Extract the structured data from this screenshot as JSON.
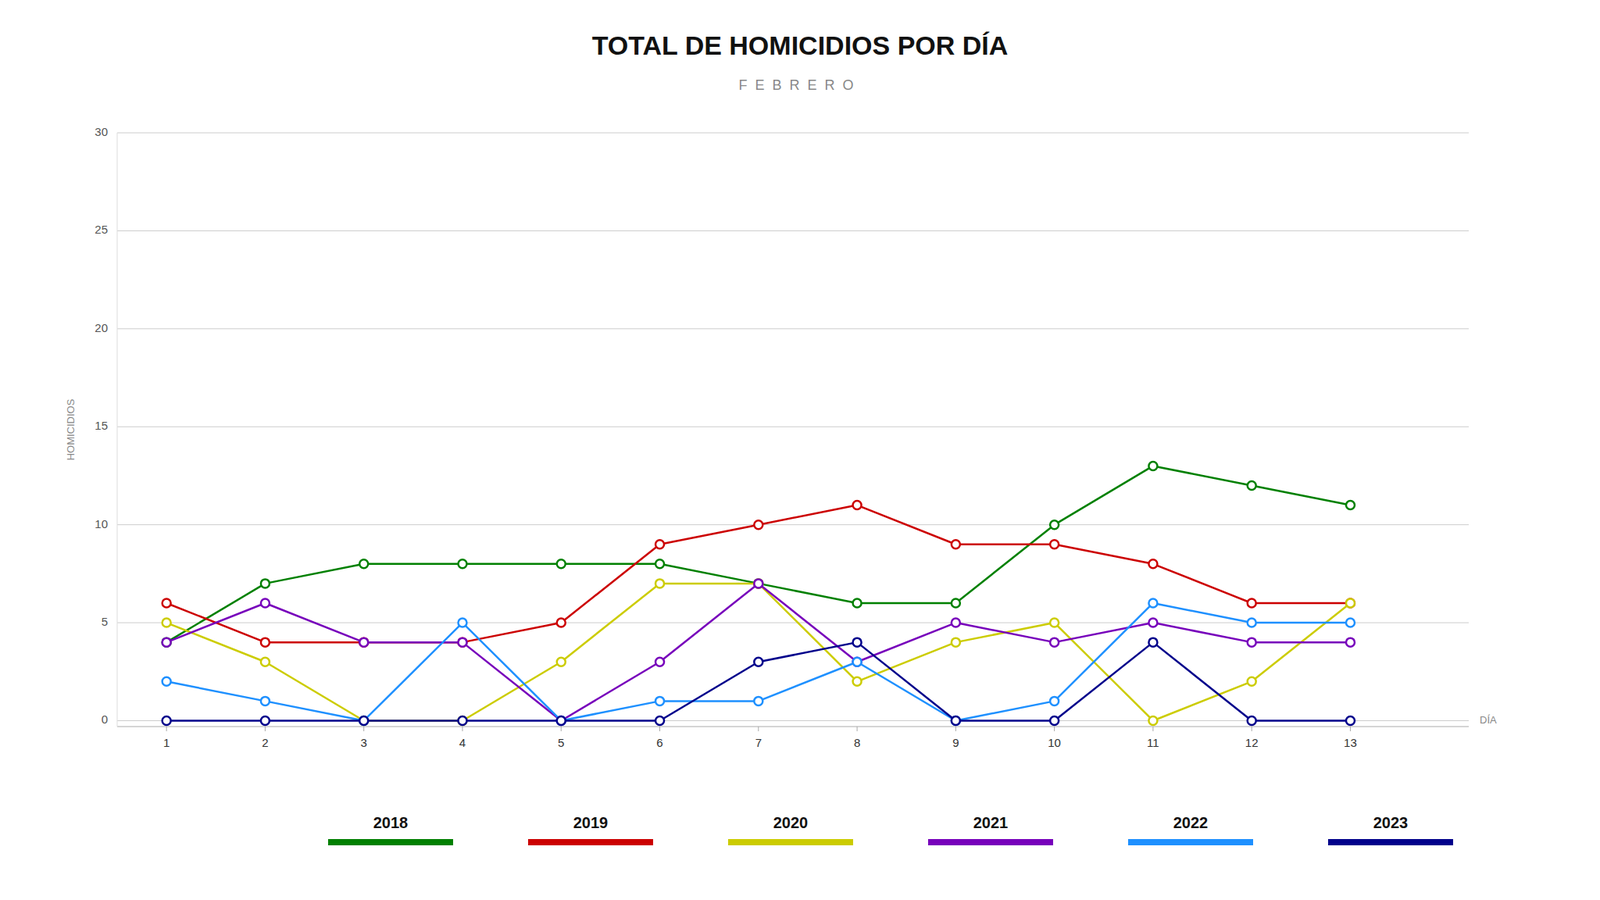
{
  "chart_data": {
    "type": "line",
    "title": "TOTAL DE HOMICIDIOS POR DÍA",
    "subtitle": "FEBRERO",
    "xlabel": "DÍA",
    "ylabel": "HOMICIDIOS",
    "x": [
      1,
      2,
      3,
      4,
      5,
      6,
      7,
      8,
      9,
      10,
      11,
      12,
      13
    ],
    "series": [
      {
        "name": "2018",
        "color": "#008000",
        "values": [
          4,
          7,
          8,
          8,
          8,
          8,
          7,
          6,
          6,
          10,
          13,
          12,
          11
        ]
      },
      {
        "name": "2019",
        "color": "#cc0000",
        "values": [
          6,
          4,
          4,
          4,
          5,
          9,
          10,
          11,
          9,
          9,
          8,
          6,
          6
        ]
      },
      {
        "name": "2020",
        "color": "#cccc00",
        "values": [
          5,
          3,
          0,
          0,
          3,
          7,
          7,
          2,
          4,
          5,
          0,
          2,
          6
        ]
      },
      {
        "name": "2021",
        "color": "#7700bb",
        "values": [
          4,
          6,
          4,
          4,
          0,
          3,
          7,
          3,
          5,
          4,
          5,
          4,
          4
        ]
      },
      {
        "name": "2022",
        "color": "#1e90ff",
        "values": [
          2,
          1,
          0,
          5,
          0,
          1,
          1,
          3,
          0,
          1,
          6,
          5,
          5
        ]
      },
      {
        "name": "2023",
        "color": "#00008b",
        "values": [
          0,
          0,
          0,
          0,
          0,
          0,
          3,
          4,
          0,
          0,
          4,
          0,
          0
        ]
      }
    ],
    "xlim": [
      0.5,
      14.2
    ],
    "xticks": [
      1,
      2,
      3,
      4,
      5,
      6,
      7,
      8,
      9,
      10,
      11,
      12,
      13
    ],
    "ylim": [
      -0.3,
      30
    ],
    "yticks": [
      0,
      5,
      10,
      15,
      20,
      25,
      30
    ],
    "grid": true,
    "legend": "bottom",
    "marker": "circle"
  }
}
